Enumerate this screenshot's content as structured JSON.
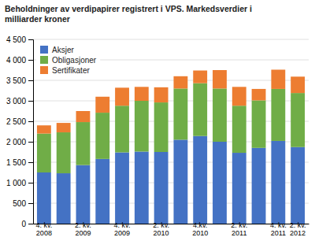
{
  "chart_data": {
    "type": "bar",
    "stacked": true,
    "title": "Beholdninger av verdipapirer registrert i VPS. Markedsverdier i\nmilliarder kroner",
    "categories": [
      "4. kv.\n2008",
      null,
      "2. kv.\n2009",
      null,
      "4. kv.\n2009",
      null,
      "2. kv.\n2010",
      null,
      "4.kv.\n2010",
      null,
      "2. kv.\n2011",
      null,
      "4. kv.\n2011",
      "2. kv.\n2012"
    ],
    "series": [
      {
        "name": "Aksjer",
        "color": "#4472C4",
        "values": [
          1250,
          1230,
          1430,
          1580,
          1740,
          1760,
          1750,
          2050,
          2140,
          2000,
          1730,
          1850,
          2020,
          1870
        ]
      },
      {
        "name": "Obligasjoner",
        "color": "#70AD47",
        "values": [
          950,
          1000,
          1050,
          1130,
          1140,
          1240,
          1210,
          1250,
          1290,
          1300,
          1150,
          1160,
          1270,
          1320
        ]
      },
      {
        "name": "Sertifikater",
        "color": "#ED7D31",
        "values": [
          200,
          230,
          270,
          390,
          440,
          340,
          370,
          300,
          310,
          450,
          460,
          280,
          470,
          400
        ]
      }
    ],
    "ylim": [
      0,
      4500
    ],
    "yticks": [
      0,
      500,
      {
        "value": 1000,
        "label": "1 000"
      },
      {
        "value": 1500,
        "label": "1 500"
      },
      {
        "value": 2000,
        "label": "2 000"
      },
      {
        "value": 2500,
        "label": "2 500"
      },
      {
        "value": 3000,
        "label": "3 000"
      },
      {
        "value": 3500,
        "label": "3 500"
      },
      {
        "value": 4000,
        "label": "4 000"
      },
      {
        "value": 4500,
        "label": "4 500"
      }
    ],
    "grid": true,
    "legend": "upper left"
  }
}
